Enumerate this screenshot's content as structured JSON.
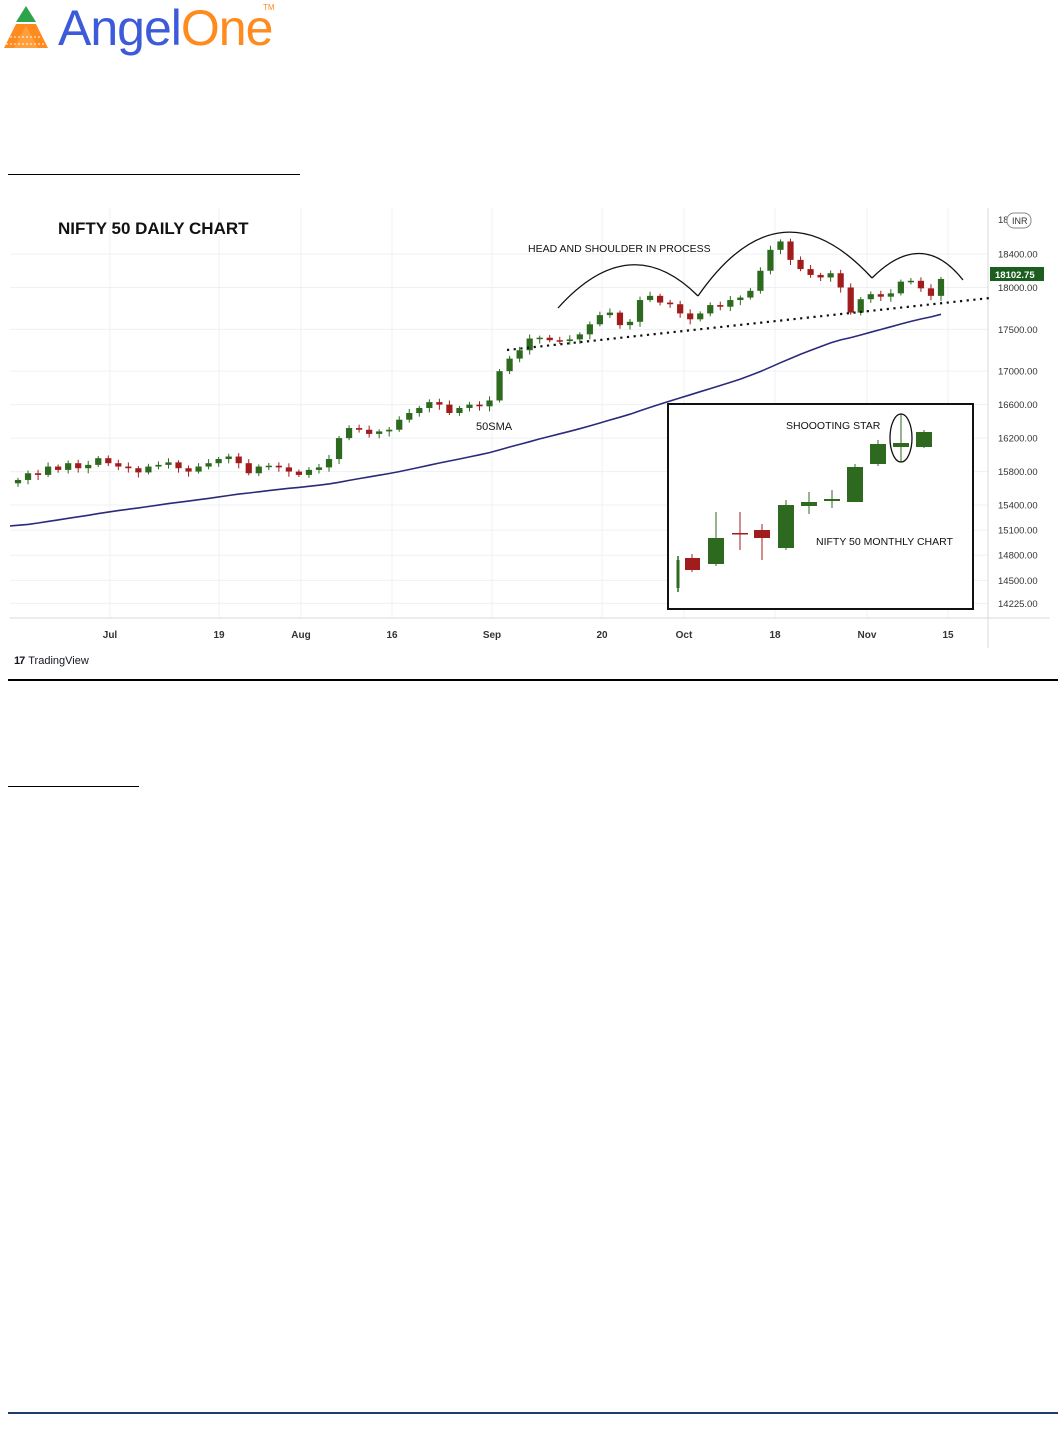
{
  "brand": {
    "name_part1": "Angel",
    "name_part2": "One",
    "trademark": "TM",
    "colors": {
      "blue": "#3d5bd9",
      "orange": "#ff8a1e",
      "green": "#2ea34a"
    }
  },
  "footer_brand": "TradingView",
  "chart_data": [
    {
      "type": "candlestick",
      "title": "NIFTY 50 DAILY CHART",
      "currency_badge": "INR",
      "last_price_label": "18102.75",
      "annotations": [
        "HEAD AND SHOULDER IN PROCESS",
        "50SMA"
      ],
      "y_ticks": [
        "18400.00",
        "18000.00",
        "17500.00",
        "17000.00",
        "16600.00",
        "16200.00",
        "15800.00",
        "15400.00",
        "15100.00",
        "14800.00",
        "14500.00",
        "14225.00"
      ],
      "y_top_partial": "18",
      "x_ticks": [
        "Jul",
        "19",
        "Aug",
        "16",
        "Sep",
        "20",
        "Oct",
        "18",
        "Nov",
        "15"
      ],
      "ylim": [
        14050,
        18950
      ],
      "up_color": "#2d6a1f",
      "down_color": "#a11d1d",
      "sma_color": "#2b2a7a",
      "closes": [
        15700,
        15780,
        15760,
        15860,
        15820,
        15900,
        15840,
        15880,
        15960,
        15900,
        15860,
        15840,
        15790,
        15860,
        15880,
        15910,
        15840,
        15800,
        15860,
        15900,
        15950,
        15980,
        15900,
        15780,
        15860,
        15870,
        15850,
        15800,
        15760,
        15820,
        15850,
        15950,
        16200,
        16320,
        16300,
        16250,
        16280,
        16300,
        16420,
        16500,
        16560,
        16630,
        16600,
        16500,
        16560,
        16600,
        16580,
        16650,
        17000,
        17150,
        17250,
        17390,
        17400,
        17370,
        17360,
        17380,
        17440,
        17560,
        17670,
        17700,
        17550,
        17590,
        17850,
        17900,
        17820,
        17800,
        17690,
        17620,
        17690,
        17790,
        17770,
        17850,
        17880,
        17960,
        18200,
        18450,
        18550,
        18330,
        18220,
        18150,
        18120,
        18170,
        18000,
        17700,
        17860,
        17920,
        17890,
        17930,
        18070,
        18080,
        17990,
        17900,
        18102
      ]
    },
    {
      "type": "candlestick",
      "title": "NIFTY 50 MONTHLY CHART",
      "annotations": [
        "SHOOOTING STAR"
      ]
    }
  ]
}
